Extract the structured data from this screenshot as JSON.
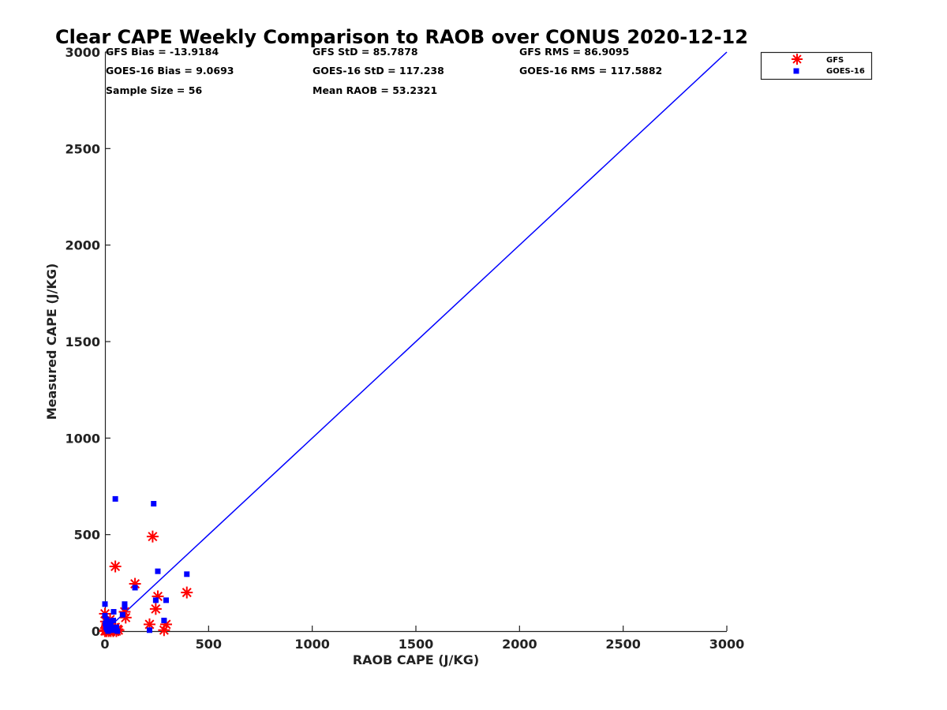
{
  "chart_data": {
    "type": "scatter",
    "title": "Clear CAPE Weekly Comparison to RAOB over CONUS 2020-12-12",
    "xlabel": "RAOB CAPE (J/KG)",
    "ylabel": "Measured CAPE (J/KG)",
    "xlim": [
      0,
      3000
    ],
    "ylim": [
      0,
      3000
    ],
    "x_ticks": [
      "0",
      "500",
      "1000",
      "1500",
      "2000",
      "2500",
      "3000"
    ],
    "y_ticks": [
      "0",
      "500",
      "1000",
      "1500",
      "2000",
      "2500",
      "3000"
    ],
    "grid": false,
    "legend_position": "top-right",
    "stats": [
      "GFS Bias = -13.9184",
      "GFS StD = 85.7878",
      "GFS RMS = 86.9095",
      "GOES-16 Bias = 9.0693",
      "GOES-16 StD = 117.238",
      "GOES-16 RMS = 117.5882",
      "Sample Size = 56",
      "Mean RAOB = 53.2321"
    ],
    "reference_line": {
      "x": [
        0,
        3000
      ],
      "y": [
        0,
        3000
      ],
      "color": "#0000ff"
    },
    "series": [
      {
        "name": "GFS",
        "marker": "asterisk",
        "color": "#ff0000",
        "points": [
          [
            0,
            0
          ],
          [
            3,
            5
          ],
          [
            5,
            15
          ],
          [
            8,
            0
          ],
          [
            10,
            25
          ],
          [
            12,
            40
          ],
          [
            15,
            10
          ],
          [
            18,
            0
          ],
          [
            20,
            5
          ],
          [
            22,
            20
          ],
          [
            25,
            60
          ],
          [
            28,
            0
          ],
          [
            30,
            15
          ],
          [
            35,
            10
          ],
          [
            40,
            0
          ],
          [
            45,
            5
          ],
          [
            50,
            20
          ],
          [
            55,
            0
          ],
          [
            60,
            10
          ],
          [
            65,
            5
          ],
          [
            0,
            90
          ],
          [
            5,
            50
          ],
          [
            50,
            335
          ],
          [
            95,
            100
          ],
          [
            100,
            70
          ],
          [
            145,
            245
          ],
          [
            215,
            35
          ],
          [
            230,
            490
          ],
          [
            245,
            115
          ],
          [
            255,
            180
          ],
          [
            285,
            5
          ],
          [
            295,
            35
          ],
          [
            395,
            200
          ]
        ]
      },
      {
        "name": "GOES-16",
        "marker": "square",
        "color": "#0000ff",
        "points": [
          [
            0,
            140
          ],
          [
            0,
            80
          ],
          [
            2,
            40
          ],
          [
            5,
            20
          ],
          [
            8,
            60
          ],
          [
            10,
            10
          ],
          [
            12,
            30
          ],
          [
            15,
            0
          ],
          [
            18,
            50
          ],
          [
            20,
            25
          ],
          [
            25,
            5
          ],
          [
            28,
            40
          ],
          [
            30,
            15
          ],
          [
            35,
            10
          ],
          [
            40,
            55
          ],
          [
            42,
            100
          ],
          [
            45,
            5
          ],
          [
            55,
            20
          ],
          [
            60,
            0
          ],
          [
            50,
            685
          ],
          [
            85,
            85
          ],
          [
            95,
            125
          ],
          [
            95,
            140
          ],
          [
            145,
            225
          ],
          [
            215,
            5
          ],
          [
            235,
            660
          ],
          [
            245,
            160
          ],
          [
            255,
            310
          ],
          [
            285,
            55
          ],
          [
            295,
            160
          ],
          [
            395,
            295
          ]
        ]
      }
    ]
  }
}
